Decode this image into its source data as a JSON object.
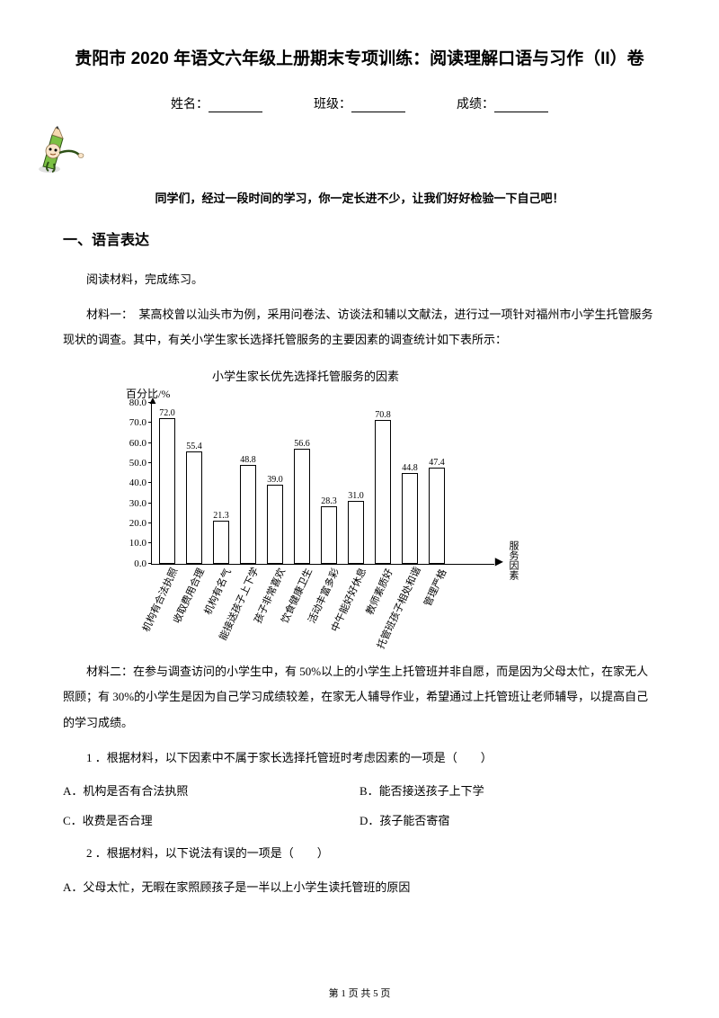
{
  "title": "贵阳市 2020 年语文六年级上册期末专项训练：阅读理解口语与习作（II）卷",
  "info": {
    "name_label": "姓名：",
    "class_label": "班级：",
    "score_label": "成绩："
  },
  "encouragement": "同学们，经过一段时间的学习，你一定长进不少，让我们好好检验一下自己吧！",
  "section1_header": "一、语言表达",
  "para1": "阅读材料，完成练习。",
  "para2": "材料一：　某高校曾以汕头市为例，采用问卷法、访谈法和辅以文献法，进行过一项针对福州市小学生托管服务现状的调查。其中，有关小学生家长选择托管服务的主要因素的调查统计如下表所示：",
  "chart": {
    "type": "bar",
    "title": "小学生家长优先选择托管服务的因素",
    "ylabel": "百分比/%",
    "xlabel": "服务因素",
    "ylim": [
      0,
      80
    ],
    "ytick_step": 10,
    "yticks": [
      "0.0",
      "10.0",
      "20.0",
      "30.0",
      "40.0",
      "50.0",
      "60.0",
      "70.0",
      "80.0"
    ],
    "categories": [
      "机构有合法执照",
      "收取费用合理",
      "机构有名气",
      "能接送孩子上下学",
      "孩子非常喜欢",
      "饮食健康卫生",
      "活动丰富多彩",
      "中午能好好休息",
      "教师素质好",
      "托管班孩子相处和谐",
      "管理严格"
    ],
    "values": [
      72.0,
      55.4,
      21.3,
      48.8,
      39.0,
      56.6,
      28.3,
      31.0,
      70.8,
      44.8,
      47.4
    ],
    "bar_border_color": "#000000",
    "bar_fill_color": "#ffffff",
    "background_color": "#ffffff",
    "axis_color": "#000000",
    "title_fontsize": 13,
    "label_fontsize": 11,
    "value_fontsize": 10
  },
  "para3": "材料二：在参与调查访问的小学生中，有 50%以上的小学生上托管班并非自愿，而是因为父母太忙，在家无人照顾；有 30%的小学生是因为自己学习成绩较差，在家无人辅导作业，希望通过上托管班让老师辅导，以提高自己的学习成绩。",
  "q1": {
    "stem": "1 ．根据材料，以下因素中不属于家长选择托管班时考虑因素的一项是（　　）",
    "optA": "A．机构是否有合法执照",
    "optB": "B．能否接送孩子上下学",
    "optC": "C．收费是否合理",
    "optD": "D．孩子能否寄宿"
  },
  "q2": {
    "stem": "2 ．根据材料，以下说法有误的一项是（　　）",
    "optA": "A．父母太忙，无暇在家照顾孩子是一半以上小学生读托管班的原因"
  },
  "footer": {
    "prefix": "第 ",
    "page": "1",
    "mid": " 页 共 ",
    "total": "5",
    "suffix": " 页"
  },
  "pencil": {
    "body_color": "#7bc043",
    "tip_color": "#f5d9b0",
    "face_color": "#f9e4c8",
    "eye_color": "#000000"
  }
}
